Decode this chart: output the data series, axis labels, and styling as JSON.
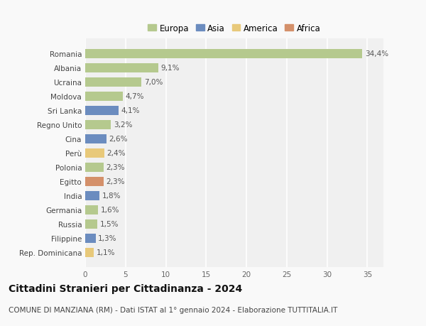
{
  "countries": [
    "Romania",
    "Albania",
    "Ucraina",
    "Moldova",
    "Sri Lanka",
    "Regno Unito",
    "Cina",
    "Perù",
    "Polonia",
    "Egitto",
    "India",
    "Germania",
    "Russia",
    "Filippine",
    "Rep. Dominicana"
  ],
  "values": [
    34.4,
    9.1,
    7.0,
    4.7,
    4.1,
    3.2,
    2.6,
    2.4,
    2.3,
    2.3,
    1.8,
    1.6,
    1.5,
    1.3,
    1.1
  ],
  "labels": [
    "34,4%",
    "9,1%",
    "7,0%",
    "4,7%",
    "4,1%",
    "3,2%",
    "2,6%",
    "2,4%",
    "2,3%",
    "2,3%",
    "1,8%",
    "1,6%",
    "1,5%",
    "1,3%",
    "1,1%"
  ],
  "continents": [
    "Europa",
    "Europa",
    "Europa",
    "Europa",
    "Asia",
    "Europa",
    "Asia",
    "America",
    "Europa",
    "Africa",
    "Asia",
    "Europa",
    "Europa",
    "Asia",
    "America"
  ],
  "continent_colors": {
    "Europa": "#b5c98e",
    "Asia": "#6b8cbf",
    "America": "#e8c97a",
    "Africa": "#d4906a"
  },
  "legend_order": [
    "Europa",
    "Asia",
    "America",
    "Africa"
  ],
  "title": "Cittadini Stranieri per Cittadinanza - 2024",
  "subtitle": "COMUNE DI MANZIANA (RM) - Dati ISTAT al 1° gennaio 2024 - Elaborazione TUTTITALIA.IT",
  "xlim": [
    0,
    37
  ],
  "xticks": [
    0,
    5,
    10,
    15,
    20,
    25,
    30,
    35
  ],
  "background_color": "#f9f9f9",
  "plot_background": "#f0f0f0",
  "grid_color": "#ffffff",
  "bar_height": 0.65,
  "title_fontsize": 10,
  "subtitle_fontsize": 7.5,
  "label_fontsize": 7.5,
  "ytick_fontsize": 7.5,
  "xtick_fontsize": 7.5,
  "legend_fontsize": 8.5
}
